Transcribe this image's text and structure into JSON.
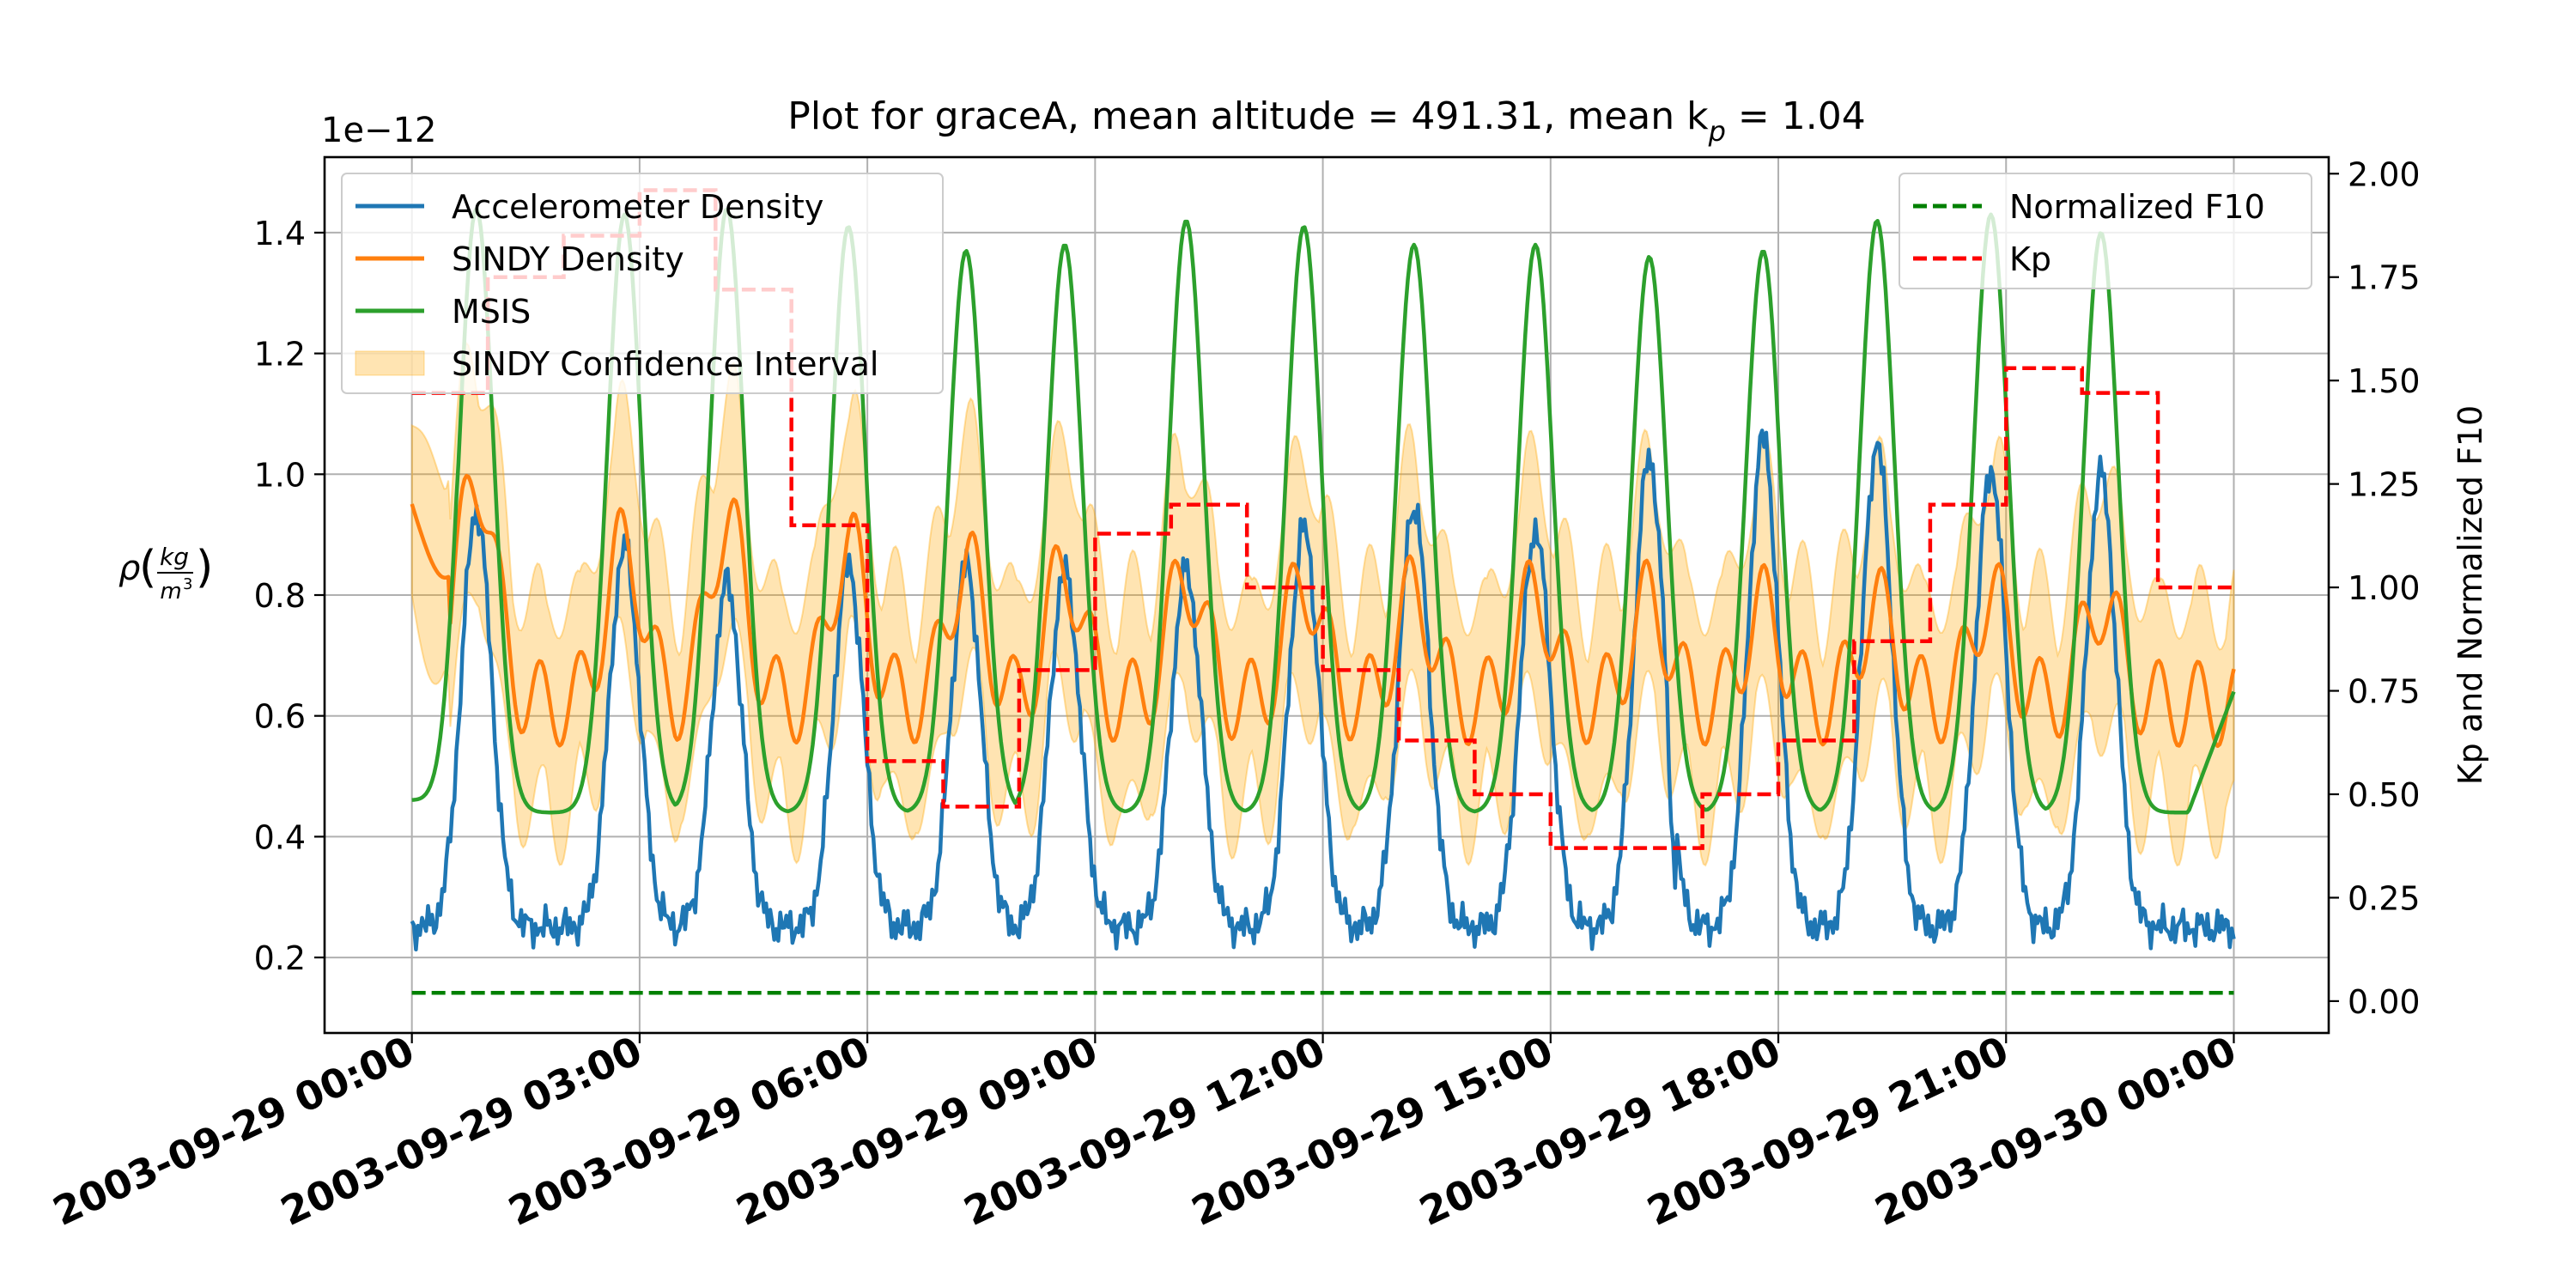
{
  "chart_data": {
    "type": "line",
    "title": "Plot for graceA, mean altitude = 491.31, mean k",
    "title_sub": "p",
    "title_tail": " = 1.04",
    "ylabel_left": {
      "rho": "ρ",
      "num": "kg",
      "den": "m",
      "exp": "3"
    },
    "ylabel_right": "Kp and Normalized F10",
    "left_offset_text": "1e−12",
    "x_ticks": [
      "2003-09-29 00:00",
      "2003-09-29 03:00",
      "2003-09-29 06:00",
      "2003-09-29 09:00",
      "2003-09-29 12:00",
      "2003-09-29 15:00",
      "2003-09-29 18:00",
      "2003-09-29 21:00",
      "2003-09-30 00:00"
    ],
    "x_range_hours": [
      -1.15,
      25.25
    ],
    "y_left_ticks": [
      "0.2",
      "0.4",
      "0.6",
      "0.8",
      "1.0",
      "1.2",
      "1.4"
    ],
    "y_left_range": [
      0.075,
      1.525
    ],
    "y_right_ticks": [
      "0.00",
      "0.25",
      "0.50",
      "0.75",
      "1.00",
      "1.25",
      "1.50",
      "1.75",
      "2.00"
    ],
    "y_right_range": [
      -0.077,
      2.04
    ],
    "grid": true,
    "legend_left": {
      "placement": "upper-left",
      "entries": [
        "Accelerometer Density",
        "SINDY Density",
        "MSIS",
        "SINDY Confidence Interval"
      ]
    },
    "legend_right": {
      "placement": "upper-right",
      "entries": [
        "Normalized F10",
        "Kp"
      ]
    },
    "series": [
      {
        "name": "Accelerometer Density",
        "axis": "left",
        "color": "#1f77b4",
        "peak_hours": [
          0.85,
          2.8,
          4.15,
          5.75,
          7.3,
          8.6,
          10.2,
          11.75,
          13.2,
          14.8,
          16.3,
          17.8,
          19.3,
          20.8,
          22.25
        ],
        "peak_values": [
          0.94,
          0.88,
          0.82,
          0.85,
          0.85,
          0.84,
          0.84,
          0.91,
          0.95,
          0.91,
          1.03,
          1.06,
          1.05,
          1.01,
          1.0
        ],
        "trough_value": 0.25
      },
      {
        "name": "SINDY Density",
        "axis": "left",
        "color": "#ff7f0e",
        "start_value": 0.95,
        "peak_values": [
          1.0,
          0.88,
          0.92,
          0.88,
          0.85,
          0.84,
          0.83,
          0.82,
          0.8,
          0.8,
          0.79,
          0.78,
          0.78,
          0.8,
          0.79
        ],
        "trough_value": 0.62
      },
      {
        "name": "MSIS",
        "axis": "left",
        "color": "#2ca02c",
        "start_value": 0.46,
        "end_value": 0.64,
        "peak_values": [
          1.44,
          1.43,
          1.44,
          1.41,
          1.37,
          1.38,
          1.42,
          1.41,
          1.38,
          1.38,
          1.36,
          1.37,
          1.42,
          1.43,
          1.4
        ],
        "trough_value": 0.44
      },
      {
        "name": "Normalized F10",
        "axis": "right",
        "color": "#008000",
        "style": "dashed",
        "value": 0.02
      },
      {
        "name": "Kp",
        "axis": "right",
        "color": "#ff0000",
        "style": "dashed-step",
        "steps": [
          [
            0.0,
            1.47
          ],
          [
            1.0,
            1.75
          ],
          [
            2.0,
            1.85
          ],
          [
            3.0,
            1.96
          ],
          [
            4.0,
            1.72
          ],
          [
            5.0,
            1.15
          ],
          [
            6.0,
            0.58
          ],
          [
            7.0,
            0.47
          ],
          [
            8.0,
            0.8
          ],
          [
            9.0,
            1.13
          ],
          [
            10.0,
            1.2
          ],
          [
            11.0,
            1.0
          ],
          [
            12.0,
            0.8
          ],
          [
            13.0,
            0.63
          ],
          [
            14.0,
            0.5
          ],
          [
            15.0,
            0.37
          ],
          [
            16.0,
            0.37
          ],
          [
            17.0,
            0.5
          ],
          [
            18.0,
            0.63
          ],
          [
            19.0,
            0.87
          ],
          [
            20.0,
            1.2
          ],
          [
            21.0,
            1.53
          ],
          [
            22.0,
            1.47
          ],
          [
            23.0,
            1.0
          ],
          [
            24.0,
            1.0
          ]
        ]
      }
    ]
  }
}
